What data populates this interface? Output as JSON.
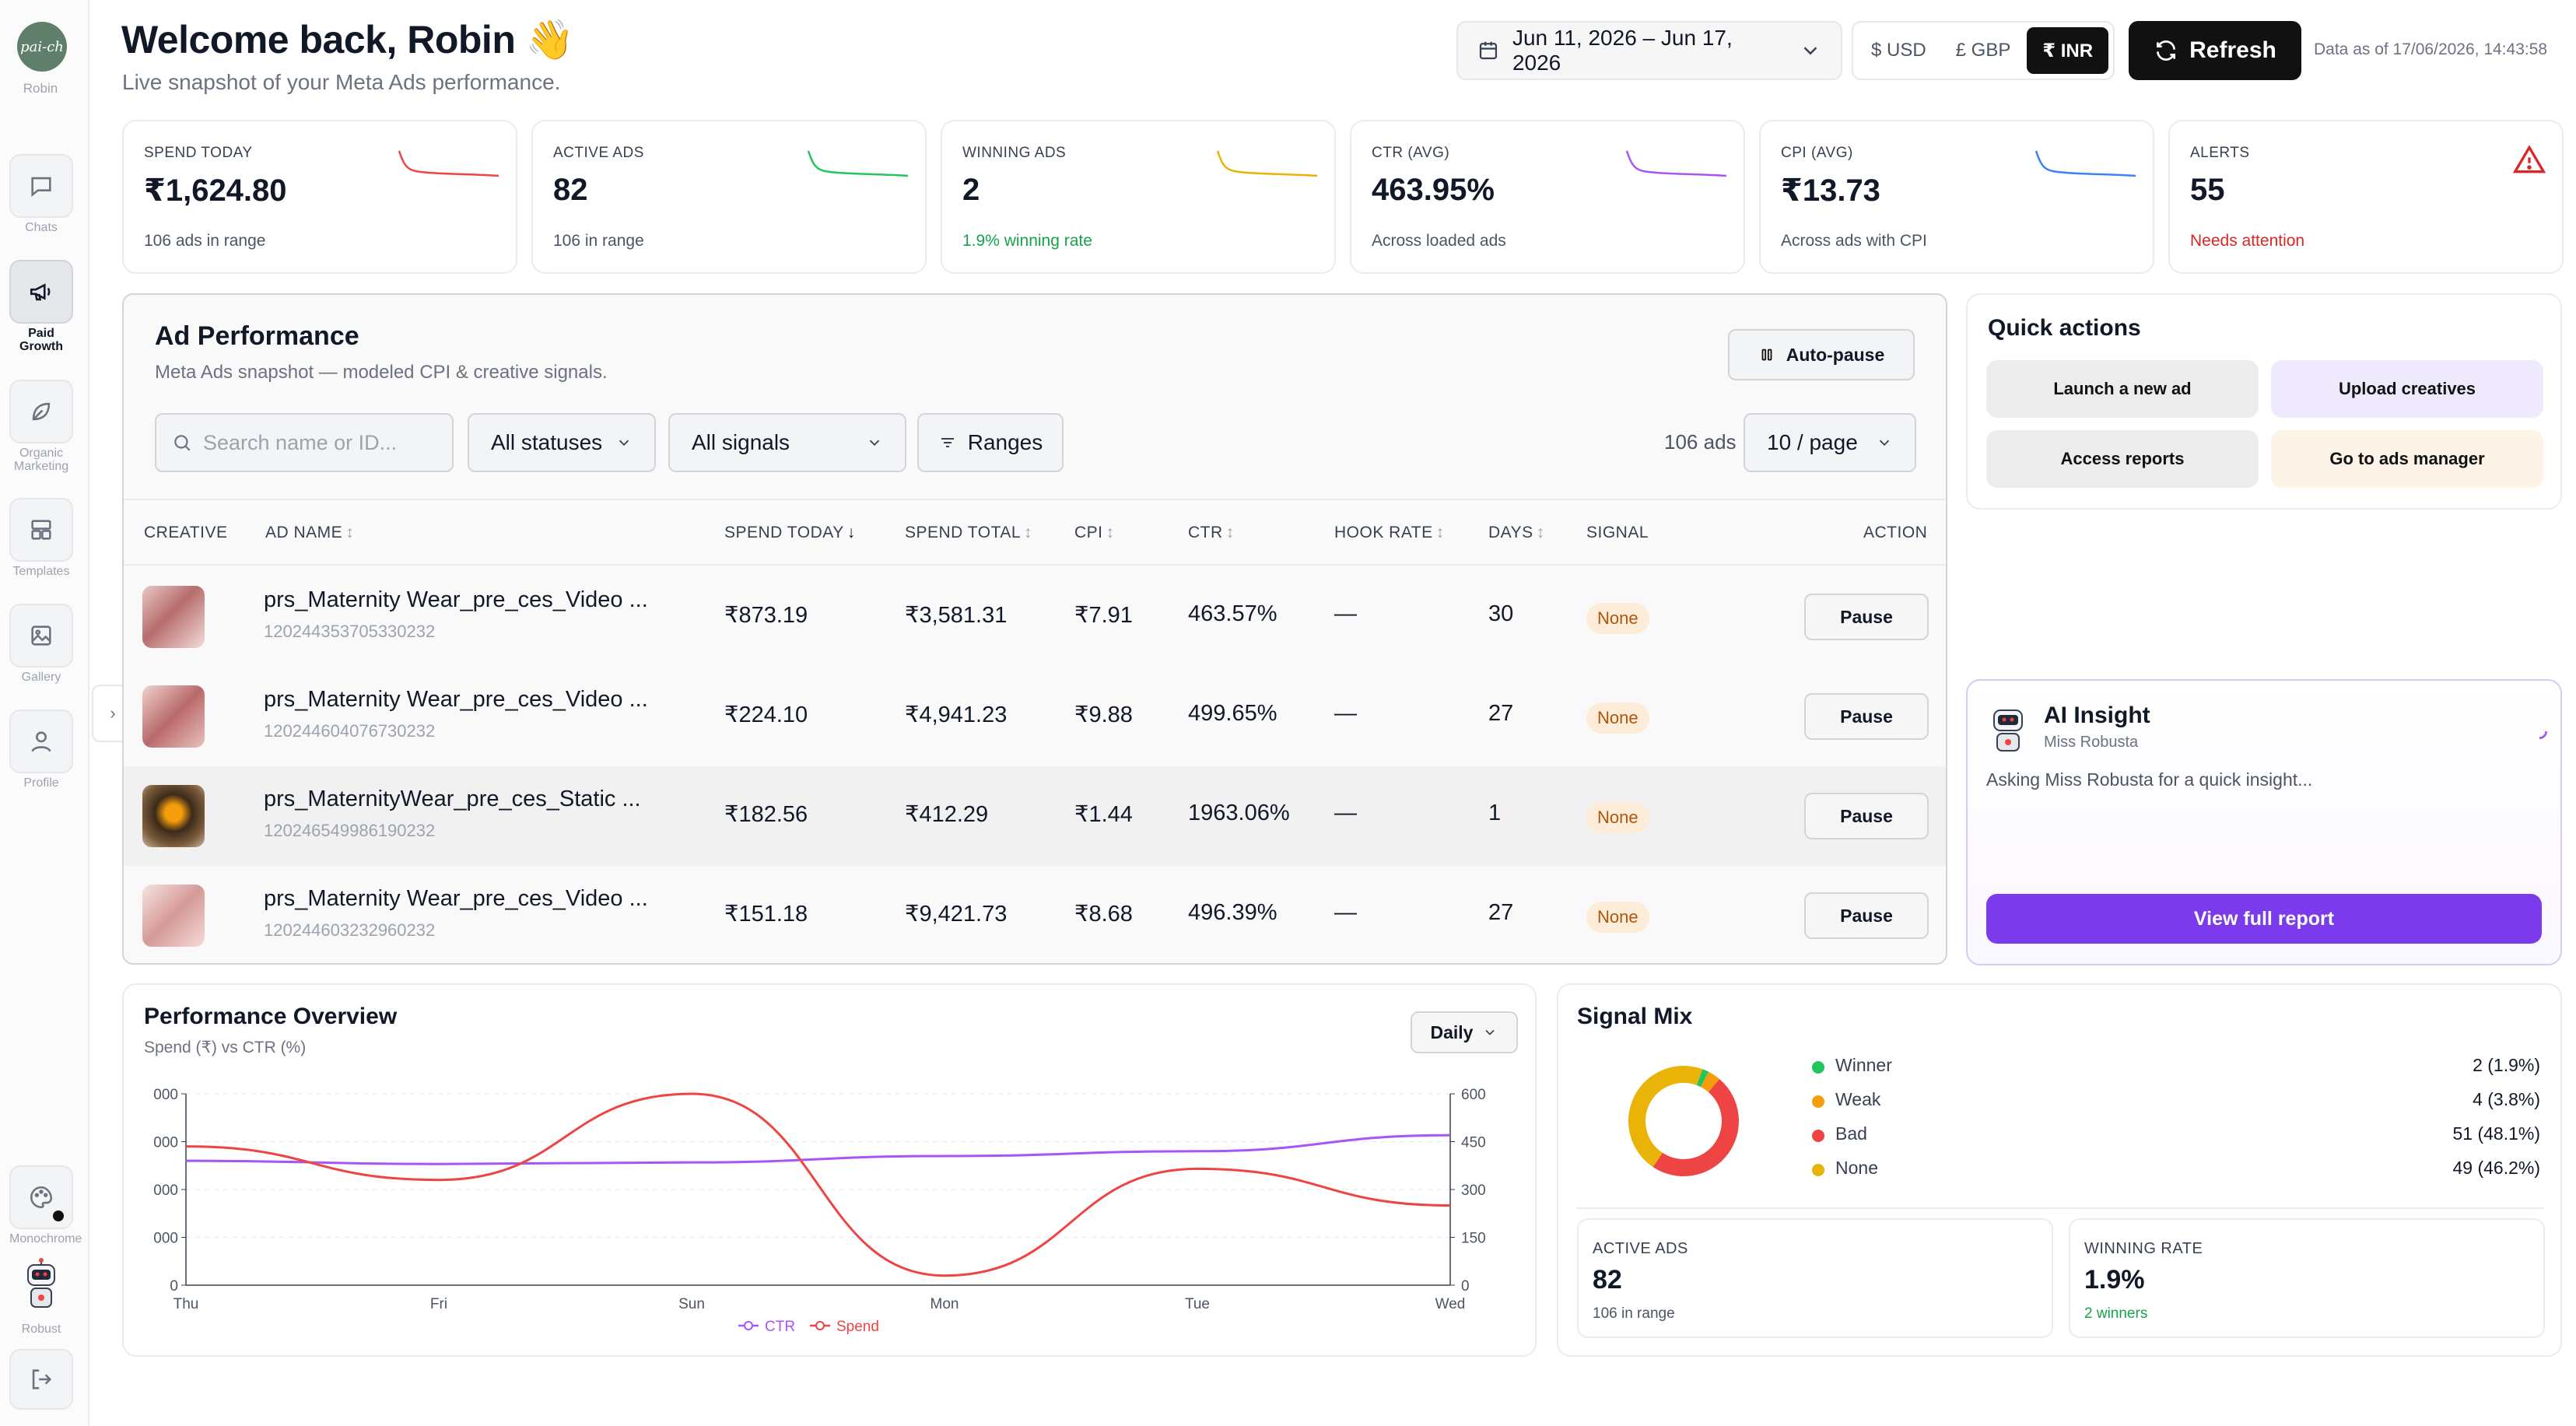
{
  "sidebar": {
    "brand_name": "Robin",
    "brand_logo_text": "pai-ch",
    "items": [
      {
        "label": "Chats",
        "icon": "chat-icon"
      },
      {
        "label": "Paid Growth",
        "icon": "megaphone-icon"
      },
      {
        "label": "Organic Marketing",
        "icon": "leaf-icon"
      },
      {
        "label": "Templates",
        "icon": "templates-icon"
      },
      {
        "label": "Gallery",
        "icon": "gallery-icon"
      },
      {
        "label": "Profile",
        "icon": "user-icon"
      }
    ],
    "bottom": [
      {
        "label": "Monochrome",
        "icon": "palette-icon"
      },
      {
        "label": "Robust",
        "icon": "robot-icon"
      },
      {
        "label": "",
        "icon": "logout-icon"
      }
    ]
  },
  "header": {
    "title": "Welcome back, Robin 👋",
    "subtitle": "Live snapshot of your Meta Ads performance.",
    "date_range": "Jun 11, 2026 – Jun 17, 2026",
    "currencies": [
      "$ USD",
      "£ GBP",
      "₹ INR"
    ],
    "selected_currency": "₹ INR",
    "refresh_label": "Refresh",
    "data_as_of": "Data as of 17/06/2026, 14:43:58"
  },
  "kpis": [
    {
      "label": "SPEND TODAY",
      "value": "₹1,624.80",
      "note": "106 ads in range",
      "color": "#ef4444"
    },
    {
      "label": "ACTIVE ADS",
      "value": "82",
      "note": "106 in range",
      "color": "#22c55e"
    },
    {
      "label": "WINNING ADS",
      "value": "2",
      "note": "1.9% winning rate",
      "color": "#eab308"
    },
    {
      "label": "CTR (AVG)",
      "value": "463.95%",
      "note": "Across loaded ads",
      "color": "#a855f7"
    },
    {
      "label": "CPI (AVG)",
      "value": "₹13.73",
      "note": "Across ads with CPI",
      "color": "#3b82f6"
    },
    {
      "label": "ALERTS",
      "value": "55",
      "note": "Needs attention",
      "color": "#dc2626"
    }
  ],
  "ad_panel": {
    "title": "Ad Performance",
    "subtitle": "Meta Ads snapshot — modeled CPI & creative signals.",
    "autopause_label": "Auto-pause",
    "search_placeholder": "Search name or ID...",
    "status_filter": "All statuses",
    "signal_filter": "All signals",
    "ranges_label": "Ranges",
    "ad_count": "106 ads",
    "page_size": "10 / page",
    "columns": [
      "CREATIVE",
      "AD NAME",
      "SPEND TODAY",
      "SPEND TOTAL",
      "CPI",
      "CTR",
      "HOOK RATE",
      "DAYS",
      "SIGNAL",
      "ACTION"
    ],
    "rows": [
      {
        "name": "prs_Maternity Wear_pre_ces_Video ...",
        "id": "120244353705330232",
        "spend_today": "₹873.19",
        "spend_total": "₹3,581.31",
        "cpi": "₹7.91",
        "ctr": "463.57%",
        "hook_rate": "—",
        "days": "30",
        "signal": "None",
        "action": "Pause"
      },
      {
        "name": "prs_Maternity Wear_pre_ces_Video ...",
        "id": "120244604076730232",
        "spend_today": "₹224.10",
        "spend_total": "₹4,941.23",
        "cpi": "₹9.88",
        "ctr": "499.65%",
        "hook_rate": "—",
        "days": "27",
        "signal": "None",
        "action": "Pause"
      },
      {
        "name": "prs_MaternityWear_pre_ces_Static ...",
        "id": "120246549986190232",
        "spend_today": "₹182.56",
        "spend_total": "₹412.29",
        "cpi": "₹1.44",
        "ctr": "1963.06%",
        "hook_rate": "—",
        "days": "1",
        "signal": "None",
        "action": "Pause"
      },
      {
        "name": "prs_Maternity Wear_pre_ces_Video ...",
        "id": "120244603232960232",
        "spend_today": "₹151.18",
        "spend_total": "₹9,421.73",
        "cpi": "₹8.68",
        "ctr": "496.39%",
        "hook_rate": "—",
        "days": "27",
        "signal": "None",
        "action": "Pause"
      }
    ]
  },
  "quick_actions": {
    "title": "Quick actions",
    "buttons": [
      "Launch a new ad",
      "Upload creatives",
      "Access reports",
      "Go to ads manager"
    ]
  },
  "ai_insight": {
    "title": "AI Insight",
    "author": "Miss Robusta",
    "text": "Asking Miss Robusta for a quick insight...",
    "button": "View full report"
  },
  "performance": {
    "title": "Performance Overview",
    "subtitle": "Spend (₹) vs CTR (%)",
    "granularity": "Daily",
    "chart_data": {
      "type": "line",
      "x": [
        "Thu",
        "Fri",
        "Sun",
        "Mon",
        "Tue",
        "Wed"
      ],
      "left_ticks": [
        "000",
        "000",
        "000",
        "000",
        "0"
      ],
      "right_ticks": [
        "600",
        "450",
        "300",
        "150",
        "0"
      ],
      "right_ylim": [
        0,
        600
      ],
      "series": [
        {
          "name": "CTR",
          "color": "#a855f7",
          "values": [
            390,
            380,
            385,
            405,
            420,
            470
          ]
        },
        {
          "name": "Spend",
          "color": "#ef4444",
          "values": [
            435,
            330,
            600,
            30,
            365,
            250
          ]
        }
      ]
    }
  },
  "signal_mix": {
    "title": "Signal Mix",
    "chart_data": {
      "type": "pie",
      "categories": [
        "Winner",
        "Weak",
        "Bad",
        "None"
      ],
      "values": [
        2,
        4,
        51,
        49
      ],
      "labels": [
        "2 (1.9%)",
        "4 (3.8%)",
        "51 (48.1%)",
        "49 (46.2%)"
      ],
      "colors": [
        "#22c55e",
        "#f59e0b",
        "#ef4444",
        "#eab308"
      ]
    },
    "stats": [
      {
        "label": "ACTIVE ADS",
        "value": "82",
        "note": "106 in range"
      },
      {
        "label": "WINNING RATE",
        "value": "1.9%",
        "note": "2 winners"
      }
    ]
  }
}
